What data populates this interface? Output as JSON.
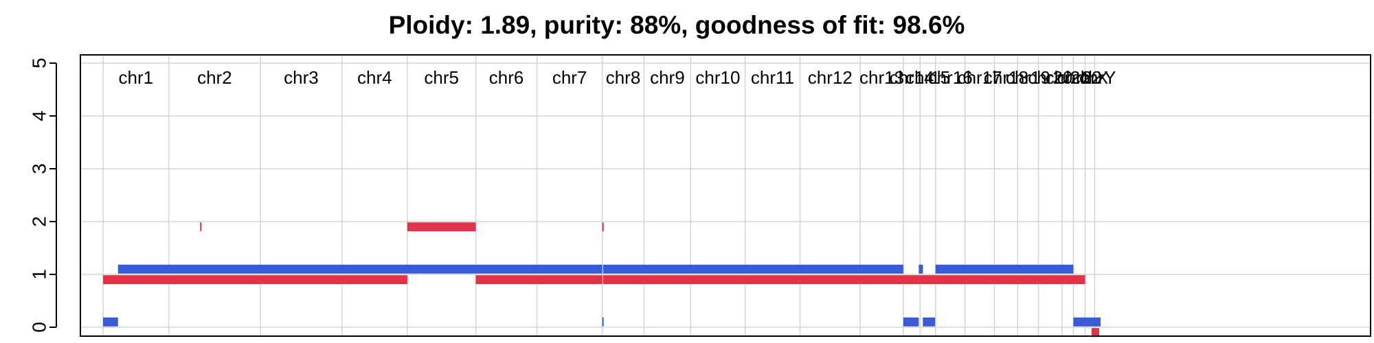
{
  "chart_data": {
    "type": "segments",
    "title": "Ploidy: 1.89, purity: 88%, goodness of fit: 98.6%",
    "ylim": [
      0,
      5
    ],
    "y_ticks": [
      0,
      1,
      2,
      3,
      4,
      5
    ],
    "grid": true,
    "genome_position_max": 2700,
    "chromosomes": [
      {
        "name": "chr1",
        "start": 0,
        "end": 145
      },
      {
        "name": "chr2",
        "start": 145,
        "end": 347
      },
      {
        "name": "chr3",
        "start": 347,
        "end": 527
      },
      {
        "name": "chr4",
        "start": 527,
        "end": 671
      },
      {
        "name": "chr5",
        "start": 671,
        "end": 822
      },
      {
        "name": "chr6",
        "start": 822,
        "end": 957
      },
      {
        "name": "chr7",
        "start": 957,
        "end": 1101
      },
      {
        "name": "chr8",
        "start": 1101,
        "end": 1193
      },
      {
        "name": "chr9",
        "start": 1193,
        "end": 1296
      },
      {
        "name": "chr10",
        "start": 1296,
        "end": 1416
      },
      {
        "name": "chr11",
        "start": 1416,
        "end": 1537
      },
      {
        "name": "chr12",
        "start": 1537,
        "end": 1670
      },
      {
        "name": "chr13",
        "start": 1670,
        "end": 1765
      },
      {
        "name": "chr14",
        "start": 1765,
        "end": 1802
      },
      {
        "name": "chr15",
        "start": 1802,
        "end": 1836
      },
      {
        "name": "chr16",
        "start": 1836,
        "end": 1901
      },
      {
        "name": "chr17",
        "start": 1901,
        "end": 1966
      },
      {
        "name": "chr18",
        "start": 1966,
        "end": 2017
      },
      {
        "name": "chr19",
        "start": 2017,
        "end": 2063
      },
      {
        "name": "chr20",
        "start": 2063,
        "end": 2115
      },
      {
        "name": "chr21",
        "start": 2115,
        "end": 2140
      },
      {
        "name": "chr22",
        "start": 2140,
        "end": 2166
      },
      {
        "name": "chrX",
        "start": 2166,
        "end": 2187
      },
      {
        "name": "chrY",
        "start": 2187,
        "end": 2200
      }
    ],
    "series": [
      {
        "color": "#3A5BD9",
        "segments": [
          {
            "start": 0,
            "end": 33,
            "value": 0.1
          },
          {
            "start": 33,
            "end": 822,
            "value": 1.1
          },
          {
            "start": 822,
            "end": 1101,
            "value": 1.1
          },
          {
            "start": 1101,
            "end": 1103,
            "value": 0.1
          },
          {
            "start": 1103,
            "end": 1765,
            "value": 1.1
          },
          {
            "start": 1765,
            "end": 1799,
            "value": 0.1
          },
          {
            "start": 1799,
            "end": 1808,
            "value": 1.1
          },
          {
            "start": 1808,
            "end": 1835,
            "value": 0.1
          },
          {
            "start": 1836,
            "end": 2140,
            "value": 1.1
          },
          {
            "start": 2140,
            "end": 2200,
            "value": 0.1
          }
        ]
      },
      {
        "color": "#E03347",
        "segments": [
          {
            "start": 0,
            "end": 671,
            "value": 0.9
          },
          {
            "start": 214,
            "end": 217,
            "value": 1.9
          },
          {
            "start": 671,
            "end": 822,
            "value": 1.9
          },
          {
            "start": 822,
            "end": 1101,
            "value": 0.9
          },
          {
            "start": 1101,
            "end": 1103,
            "value": 1.9
          },
          {
            "start": 1103,
            "end": 2166,
            "value": 0.9
          },
          {
            "start": 2180,
            "end": 2197,
            "value": -0.1
          }
        ]
      }
    ]
  }
}
